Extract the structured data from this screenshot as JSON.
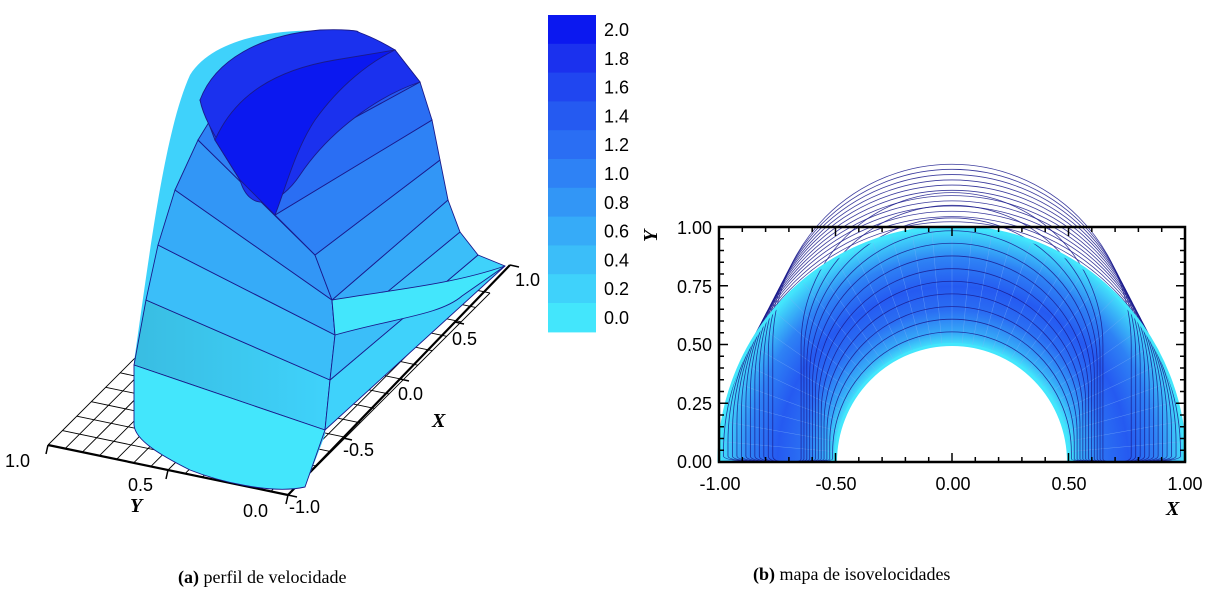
{
  "captions": {
    "a_tag": "(a)",
    "a_text": " perfil de velocidade",
    "b_tag": "(b)",
    "b_text": " mapa de isovelocidades"
  },
  "colors": {
    "scale": [
      "#43E6FC",
      "#3FD2FB",
      "#3BBEF9",
      "#36ABF8",
      "#3296F6",
      "#2E82F5",
      "#2A6EF3",
      "#255AF1",
      "#2046F0",
      "#1B31EE",
      "#0B18F0"
    ],
    "contour_line": "#1A1A8C",
    "axis": "#000000"
  },
  "chart_data": [
    {
      "type": "heatmap",
      "title": "(a) perfil de velocidade",
      "surface": "3d",
      "xlabel": "X",
      "ylabel": "Y",
      "x_ticks": [
        "1.0",
        "0.5",
        "0.0",
        "-0.5",
        "-1.0"
      ],
      "y_ticks": [
        "1.0",
        "0.5",
        "0.0"
      ],
      "colorbar": {
        "levels": [
          "2.0",
          "1.8",
          "1.6",
          "1.4",
          "1.2",
          "1.0",
          "0.8",
          "0.6",
          "0.4",
          "0.2",
          "0.0"
        ],
        "min": 0.0,
        "max": 2.0
      }
    },
    {
      "type": "heatmap",
      "title": "(b) mapa de isovelocidades",
      "xlabel": "X",
      "ylabel": "Y",
      "xlim": [
        -1.0,
        1.0
      ],
      "ylim": [
        0.0,
        1.0
      ],
      "x_ticks": [
        "-1.00",
        "-0.50",
        "0.00",
        "0.50",
        "1.00"
      ],
      "y_ticks": [
        "1.00",
        "0.75",
        "0.50",
        "0.25",
        "0.00"
      ],
      "domain": {
        "outer_radius": 1.0,
        "inner_radius": 0.5
      },
      "max_location": {
        "x": 0.0,
        "y": 0.7
      }
    }
  ]
}
